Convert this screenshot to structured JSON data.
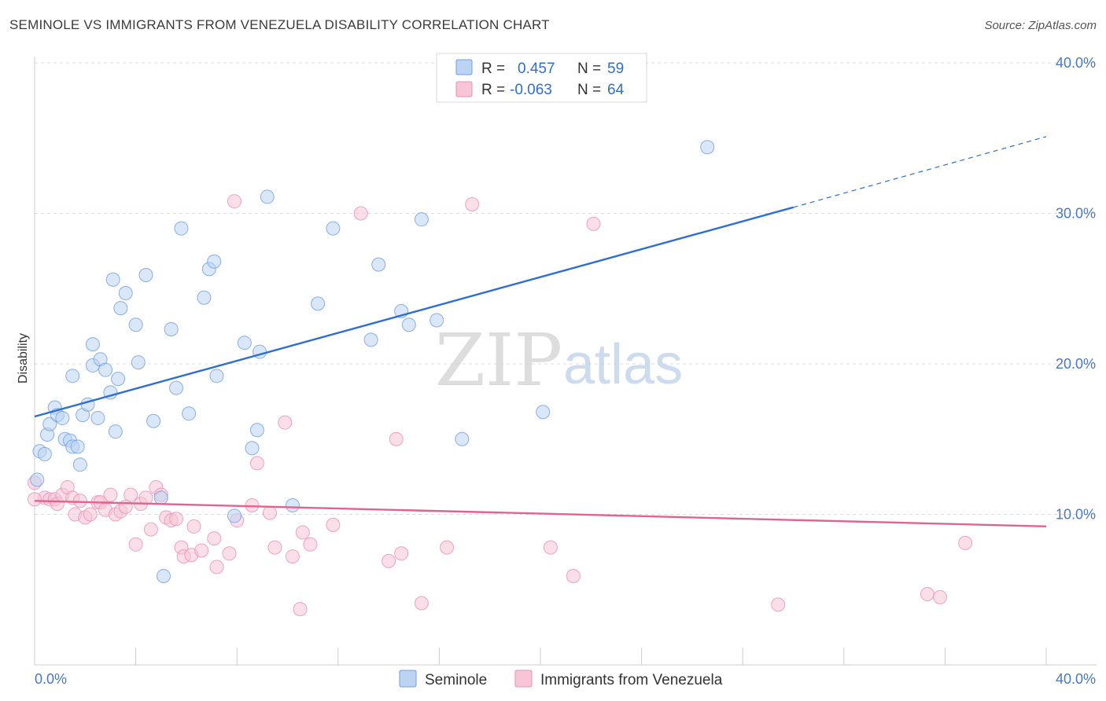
{
  "header": {
    "title": "SEMINOLE VS IMMIGRANTS FROM VENEZUELA DISABILITY CORRELATION CHART",
    "source": "Source: ZipAtlas.com"
  },
  "watermark": {
    "zip": "ZIP",
    "atlas": "atlas"
  },
  "colors": {
    "seminole": "#6f9fe0",
    "seminole_fill": "#bcd3f3",
    "seminole_line": "#2f6fd1",
    "venezuela": "#ec8fb1",
    "venezuela_fill": "#f7c5d6",
    "venezuela_line": "#e0648f",
    "tick_label": "#4a78c2"
  },
  "legend_top": {
    "r_label": "R =",
    "n_label": "N =",
    "rows": [
      {
        "series": "Seminole",
        "r": "0.457",
        "n": "59"
      },
      {
        "series": "Immigrants from Venezuela",
        "r": "-0.063",
        "n": "64"
      }
    ]
  },
  "legend_bottom": [
    "Seminole",
    "Immigrants from Venezuela"
  ],
  "chart_data": {
    "type": "scatter",
    "title": "SEMINOLE VS IMMIGRANTS FROM VENEZUELA DISABILITY CORRELATION CHART",
    "xlabel": "",
    "ylabel": "Disability",
    "xlim": [
      0,
      40
    ],
    "ylim": [
      0,
      40
    ],
    "x_tick_labels": [
      "0.0%",
      "40.0%"
    ],
    "y_ticks": [
      10,
      20,
      30,
      40
    ],
    "y_tick_labels": [
      "10.0%",
      "20.0%",
      "30.0%",
      "40.0%"
    ],
    "grid": "horizontal dashed",
    "legend": "top-center and bottom",
    "series": [
      {
        "name": "Seminole",
        "r": 0.457,
        "n": 59,
        "trend": {
          "x0": 0,
          "y0": 16.5,
          "x1": 30,
          "y1": 30.4,
          "dashed_to_x": 40,
          "dashed_to_y": 35.1
        },
        "points": [
          [
            0.1,
            12.3
          ],
          [
            0.2,
            14.2
          ],
          [
            0.4,
            14.0
          ],
          [
            0.5,
            15.3
          ],
          [
            0.6,
            16.0
          ],
          [
            0.8,
            17.1
          ],
          [
            0.9,
            16.6
          ],
          [
            1.1,
            16.4
          ],
          [
            1.2,
            15.0
          ],
          [
            1.4,
            14.9
          ],
          [
            1.5,
            14.5
          ],
          [
            1.7,
            14.5
          ],
          [
            1.8,
            13.3
          ],
          [
            1.5,
            19.2
          ],
          [
            1.9,
            16.6
          ],
          [
            2.1,
            17.3
          ],
          [
            2.3,
            21.3
          ],
          [
            2.3,
            19.9
          ],
          [
            2.6,
            20.3
          ],
          [
            2.8,
            19.6
          ],
          [
            2.5,
            16.4
          ],
          [
            3.0,
            18.1
          ],
          [
            3.2,
            15.5
          ],
          [
            3.3,
            19.0
          ],
          [
            3.4,
            23.7
          ],
          [
            3.6,
            24.7
          ],
          [
            3.1,
            25.6
          ],
          [
            4.0,
            22.6
          ],
          [
            4.1,
            20.1
          ],
          [
            4.4,
            25.9
          ],
          [
            4.7,
            16.2
          ],
          [
            5.0,
            11.1
          ],
          [
            5.1,
            5.9
          ],
          [
            5.4,
            22.3
          ],
          [
            5.6,
            18.4
          ],
          [
            5.8,
            29.0
          ],
          [
            6.1,
            16.7
          ],
          [
            6.7,
            24.4
          ],
          [
            6.9,
            26.3
          ],
          [
            7.1,
            26.8
          ],
          [
            7.2,
            19.2
          ],
          [
            7.9,
            9.9
          ],
          [
            8.3,
            21.4
          ],
          [
            8.6,
            14.4
          ],
          [
            8.8,
            15.6
          ],
          [
            8.9,
            20.8
          ],
          [
            9.2,
            31.1
          ],
          [
            10.2,
            10.6
          ],
          [
            11.2,
            24.0
          ],
          [
            11.8,
            29.0
          ],
          [
            13.3,
            21.6
          ],
          [
            13.6,
            26.6
          ],
          [
            14.5,
            23.5
          ],
          [
            14.8,
            22.6
          ],
          [
            15.3,
            29.6
          ],
          [
            15.9,
            22.9
          ],
          [
            16.9,
            15.0
          ],
          [
            20.1,
            16.8
          ],
          [
            26.6,
            34.4
          ]
        ]
      },
      {
        "name": "Immigrants from Venezuela",
        "r": -0.063,
        "n": 64,
        "trend": {
          "x0": 0,
          "y0": 10.9,
          "x1": 40,
          "y1": 9.2
        },
        "points": [
          [
            0.0,
            12.1
          ],
          [
            0.4,
            11.1
          ],
          [
            0.6,
            11.0
          ],
          [
            0.8,
            11.0
          ],
          [
            0.9,
            10.7
          ],
          [
            1.1,
            11.3
          ],
          [
            1.3,
            11.8
          ],
          [
            1.5,
            11.1
          ],
          [
            1.6,
            10.0
          ],
          [
            1.8,
            10.9
          ],
          [
            2.0,
            9.8
          ],
          [
            2.2,
            10.0
          ],
          [
            2.5,
            10.8
          ],
          [
            2.6,
            10.8
          ],
          [
            2.8,
            10.3
          ],
          [
            3.0,
            11.3
          ],
          [
            3.2,
            10.0
          ],
          [
            3.4,
            10.2
          ],
          [
            3.6,
            10.5
          ],
          [
            3.8,
            11.3
          ],
          [
            4.0,
            8.0
          ],
          [
            4.2,
            10.7
          ],
          [
            4.4,
            11.1
          ],
          [
            4.6,
            9.0
          ],
          [
            4.8,
            11.8
          ],
          [
            5.0,
            11.3
          ],
          [
            5.2,
            9.8
          ],
          [
            5.4,
            9.6
          ],
          [
            5.6,
            9.7
          ],
          [
            5.8,
            7.8
          ],
          [
            5.9,
            7.2
          ],
          [
            6.2,
            7.3
          ],
          [
            6.3,
            9.2
          ],
          [
            6.6,
            7.6
          ],
          [
            7.1,
            8.4
          ],
          [
            7.2,
            6.5
          ],
          [
            7.7,
            7.4
          ],
          [
            8.0,
            9.6
          ],
          [
            7.9,
            30.8
          ],
          [
            8.6,
            10.6
          ],
          [
            8.8,
            13.4
          ],
          [
            9.3,
            10.1
          ],
          [
            9.5,
            7.8
          ],
          [
            9.9,
            16.1
          ],
          [
            10.2,
            7.2
          ],
          [
            10.5,
            3.7
          ],
          [
            10.6,
            8.8
          ],
          [
            10.9,
            8.0
          ],
          [
            11.8,
            9.3
          ],
          [
            12.9,
            30.0
          ],
          [
            14.0,
            6.9
          ],
          [
            14.5,
            7.4
          ],
          [
            14.3,
            15.0
          ],
          [
            15.3,
            4.1
          ],
          [
            16.3,
            7.8
          ],
          [
            17.3,
            30.6
          ],
          [
            20.4,
            7.8
          ],
          [
            21.3,
            5.9
          ],
          [
            22.1,
            29.3
          ],
          [
            29.4,
            4.0
          ],
          [
            35.3,
            4.7
          ],
          [
            35.8,
            4.5
          ],
          [
            36.8,
            8.1
          ],
          [
            0.0,
            11.0
          ]
        ]
      }
    ]
  }
}
